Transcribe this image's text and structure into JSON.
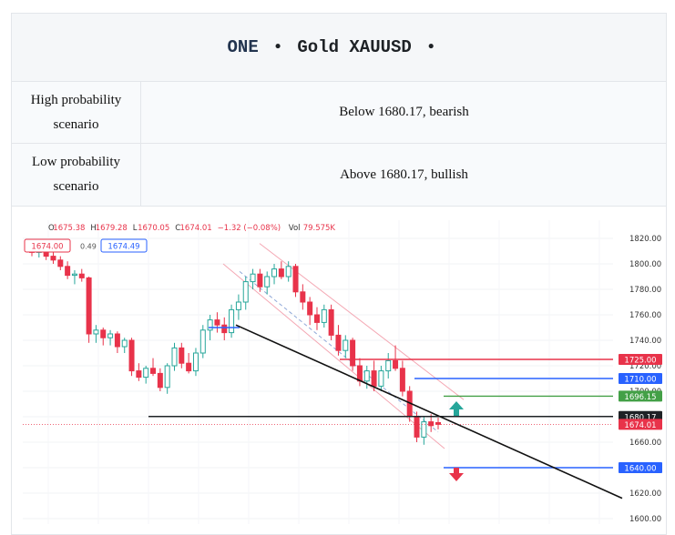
{
  "header": {
    "brand": "ONE",
    "separator": "•",
    "symbol": "Gold XAUUSD"
  },
  "scenarios": [
    {
      "label": "High probability scenario",
      "value": "Below 1680.17, bearish"
    },
    {
      "label": "Low probability scenario",
      "value": "Above 1680.17, bullish"
    }
  ],
  "chart_data": {
    "type": "candlestick",
    "ohlc_readout": {
      "open_label": "O",
      "open": "1675.38",
      "high_label": "H",
      "high": "1679.28",
      "low_label": "L",
      "low": "1670.05",
      "close_label": "C",
      "close": "1674.01",
      "change": "−1.32 (−0.08%)",
      "volume_label": "Vol",
      "volume": "79.575K"
    },
    "bid_box": "1674.00",
    "spread": "0.49",
    "ask_box": "1674.49",
    "ylim": [
      1600,
      1820
    ],
    "y_ticks": [
      "1820.00",
      "1800.00",
      "1780.00",
      "1760.00",
      "1740.00",
      "1720.00",
      "1700.00",
      "1680.00",
      "1660.00",
      "1640.00",
      "1620.00",
      "1600.00"
    ],
    "price_labels": [
      {
        "value": 1725.0,
        "text": "1725.00",
        "color": "#e8334a"
      },
      {
        "value": 1710.0,
        "text": "1710.00",
        "color": "#2962ff"
      },
      {
        "value": 1696.15,
        "text": "1696.15",
        "color": "#43a047"
      },
      {
        "value": 1680.17,
        "text": "1680.17",
        "color": "#1e2226"
      },
      {
        "value": 1674.01,
        "text": "1674.01",
        "color": "#e8334a"
      },
      {
        "value": 1640.0,
        "text": "1640.00",
        "color": "#2962ff"
      }
    ],
    "candles": [
      [
        1812,
        1816,
        1806,
        1809
      ],
      [
        1809,
        1814,
        1805,
        1811
      ],
      [
        1811,
        1815,
        1803,
        1806
      ],
      [
        1806,
        1810,
        1800,
        1803
      ],
      [
        1803,
        1806,
        1795,
        1798
      ],
      [
        1798,
        1802,
        1788,
        1791
      ],
      [
        1791,
        1795,
        1784,
        1792
      ],
      [
        1792,
        1796,
        1786,
        1789
      ],
      [
        1789,
        1790,
        1738,
        1745
      ],
      [
        1745,
        1752,
        1738,
        1748
      ],
      [
        1748,
        1750,
        1736,
        1742
      ],
      [
        1742,
        1748,
        1736,
        1745
      ],
      [
        1745,
        1747,
        1730,
        1735
      ],
      [
        1735,
        1742,
        1730,
        1740
      ],
      [
        1740,
        1742,
        1712,
        1716
      ],
      [
        1716,
        1722,
        1708,
        1711
      ],
      [
        1711,
        1720,
        1706,
        1718
      ],
      [
        1718,
        1726,
        1712,
        1714
      ],
      [
        1714,
        1718,
        1700,
        1703
      ],
      [
        1703,
        1722,
        1698,
        1720
      ],
      [
        1720,
        1738,
        1716,
        1734
      ],
      [
        1734,
        1738,
        1718,
        1722
      ],
      [
        1722,
        1730,
        1714,
        1716
      ],
      [
        1716,
        1734,
        1712,
        1730
      ],
      [
        1730,
        1752,
        1726,
        1748
      ],
      [
        1748,
        1760,
        1740,
        1756
      ],
      [
        1756,
        1762,
        1746,
        1752
      ],
      [
        1752,
        1758,
        1740,
        1746
      ],
      [
        1746,
        1768,
        1742,
        1764
      ],
      [
        1764,
        1776,
        1756,
        1770
      ],
      [
        1770,
        1790,
        1764,
        1786
      ],
      [
        1786,
        1796,
        1780,
        1792
      ],
      [
        1792,
        1796,
        1778,
        1782
      ],
      [
        1782,
        1794,
        1776,
        1790
      ],
      [
        1790,
        1800,
        1784,
        1796
      ],
      [
        1796,
        1802,
        1788,
        1790
      ],
      [
        1790,
        1802,
        1786,
        1798
      ],
      [
        1798,
        1800,
        1774,
        1778
      ],
      [
        1778,
        1784,
        1764,
        1770
      ],
      [
        1770,
        1774,
        1752,
        1760
      ],
      [
        1760,
        1766,
        1748,
        1754
      ],
      [
        1754,
        1768,
        1750,
        1764
      ],
      [
        1764,
        1768,
        1740,
        1744
      ],
      [
        1744,
        1752,
        1728,
        1732
      ],
      [
        1732,
        1744,
        1726,
        1740
      ],
      [
        1740,
        1742,
        1716,
        1720
      ],
      [
        1720,
        1726,
        1704,
        1708
      ],
      [
        1708,
        1720,
        1702,
        1716
      ],
      [
        1716,
        1724,
        1700,
        1704
      ],
      [
        1704,
        1720,
        1700,
        1716
      ],
      [
        1716,
        1730,
        1710,
        1724
      ],
      [
        1724,
        1736,
        1716,
        1718
      ],
      [
        1718,
        1724,
        1696,
        1700
      ],
      [
        1700,
        1704,
        1676,
        1680
      ],
      [
        1680,
        1684,
        1660,
        1664
      ],
      [
        1664,
        1680,
        1658,
        1676
      ],
      [
        1676,
        1682,
        1668,
        1673
      ],
      [
        1675.38,
        1679.28,
        1670.05,
        1674.01
      ]
    ],
    "grid": true
  }
}
